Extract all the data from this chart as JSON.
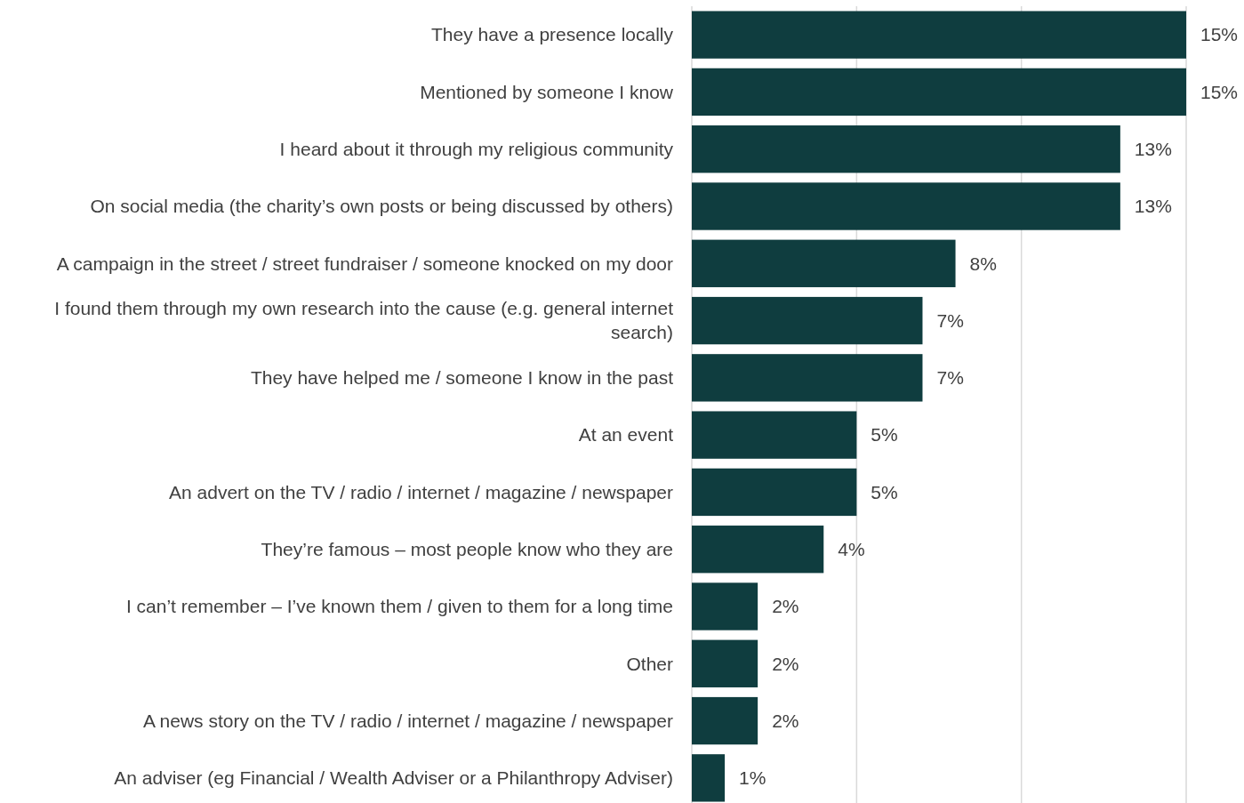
{
  "chart_data": {
    "type": "bar",
    "orientation": "horizontal",
    "categories": [
      "They have a presence locally",
      "Mentioned by someone I know",
      "I heard about it through my religious community",
      "On social media (the charity’s own posts or being discussed by others)",
      "A campaign in the street / street fundraiser / someone knocked on my door",
      "I found them through my own research into the cause (e.g. general internet search)",
      "They have helped me / someone I know in the past",
      "At an event",
      "An advert on the TV / radio / internet / magazine / newspaper",
      "They’re famous – most people know who they are",
      "I can’t remember – I’ve known them / given to them for a long time",
      "Other",
      "A news story on the TV / radio / internet / magazine / newspaper",
      "An adviser (eg Financial / Wealth Adviser or a Philanthropy Adviser)"
    ],
    "values": [
      15,
      15,
      13,
      13,
      8,
      7,
      7,
      5,
      5,
      4,
      2,
      2,
      2,
      1
    ],
    "value_labels": [
      "15%",
      "15%",
      "13%",
      "13%",
      "8%",
      "7%",
      "7%",
      "5%",
      "5%",
      "4%",
      "2%",
      "2%",
      "2%",
      "1%"
    ],
    "color": "#0f3d3f",
    "xlim": [
      0,
      15
    ],
    "xticks": [
      {
        "value": 0,
        "label": null
      },
      {
        "value": 5,
        "label": null
      },
      {
        "value": 10,
        "label": null
      },
      {
        "value": 15,
        "label": null
      }
    ],
    "tick_labels": "y",
    "grid": "x"
  }
}
